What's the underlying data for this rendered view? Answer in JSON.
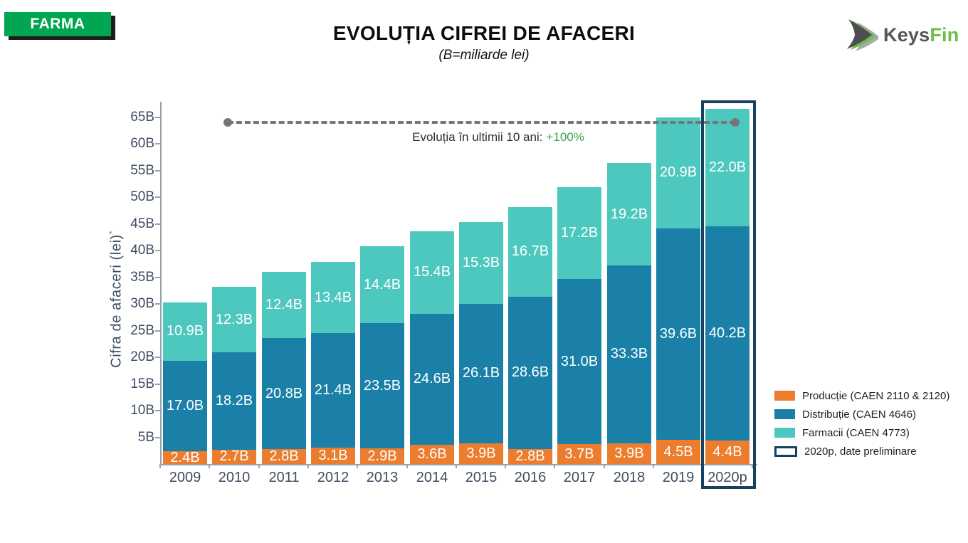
{
  "badge": {
    "label": "FARMA",
    "background": "#00A651"
  },
  "header": {
    "title": "EVOLUȚIA CIFREI DE AFACERI",
    "subtitle": "(B=miliarde lei)"
  },
  "logo": {
    "brand_primary": "Keys",
    "brand_accent": "Fin",
    "accent_color": "#6CBE45",
    "primary_color": "#55565A"
  },
  "chart_data": {
    "type": "bar",
    "stacked": true,
    "title": "EVOLUȚIA CIFREI DE AFACERI",
    "subtitle": "(B=miliarde lei)",
    "ylabel": "Cifra de afaceri (lei)",
    "ylabel_marker": "*",
    "unit_suffix": "B",
    "grid": false,
    "legend_position": "right-bottom",
    "categories": [
      "2009",
      "2010",
      "2011",
      "2012",
      "2013",
      "2014",
      "2015",
      "2016",
      "2017",
      "2018",
      "2019",
      "2020p"
    ],
    "series": [
      {
        "name": "Producție (CAEN 2110 & 2120)",
        "color": "#ED7D2E",
        "values": [
          2.4,
          2.7,
          2.8,
          3.1,
          2.9,
          3.6,
          3.9,
          2.8,
          3.7,
          3.9,
          4.5,
          4.4
        ]
      },
      {
        "name": "Distribuție (CAEN 4646)",
        "color": "#1B80A8",
        "values": [
          17.0,
          18.2,
          20.8,
          21.4,
          23.5,
          24.6,
          26.1,
          28.6,
          31.0,
          33.3,
          39.6,
          40.2
        ]
      },
      {
        "name": "Farmacii (CAEN 4773)",
        "color": "#4DC8BF",
        "values": [
          10.9,
          12.3,
          12.4,
          13.4,
          14.4,
          15.4,
          15.3,
          16.7,
          17.2,
          19.2,
          20.9,
          22.0
        ]
      }
    ],
    "y_ticks": [
      5,
      10,
      15,
      20,
      25,
      30,
      35,
      40,
      45,
      50,
      55,
      60,
      65
    ],
    "ylim": [
      0,
      68
    ],
    "annotation": {
      "text": "Evoluția în ultimii 10 ani:",
      "value": "+100%",
      "value_color": "#3FA047",
      "line_level_B": 64,
      "from_category": "2010",
      "to_category": "2020p"
    },
    "highlight": {
      "category": "2020p",
      "border_color": "#16415F",
      "legend_label": "2020p, date preliminare"
    }
  }
}
